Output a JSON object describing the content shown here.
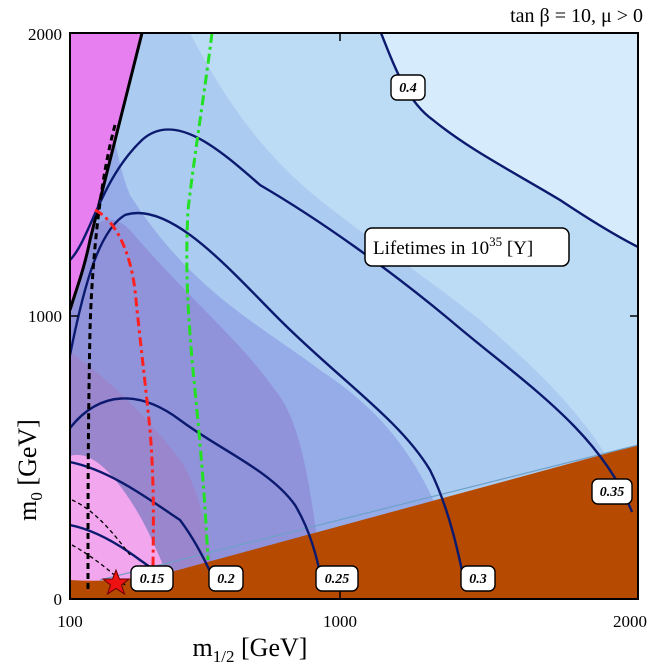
{
  "chart_data": {
    "type": "contour",
    "title": "tan β = 10,  μ > 0",
    "xlabel": "m",
    "xlabel_sub": "1/2",
    "xlabel_unit": " [GeV]",
    "ylabel": "m",
    "ylabel_sub": "0",
    "ylabel_unit": " [GeV]",
    "xlim": [
      100,
      2000
    ],
    "ylim": [
      0,
      2000
    ],
    "x_ticks": [
      "100",
      "1000",
      "2000"
    ],
    "y_ticks": [
      "0",
      "1000",
      "2000"
    ],
    "annotation": {
      "text": "Lifetimes in 10",
      "sup": "35",
      "unit": " [Y]"
    },
    "contour_levels": [
      "0.15",
      "0.2",
      "0.25",
      "0.3",
      "0.35",
      "0.4"
    ],
    "benchmark_marker": "star",
    "colors": {
      "excluded_top_left": "#e87ff0",
      "excluded_bottom_right": "#b54a00",
      "contour_lines": "#0b1a6e",
      "dashed_black": "#000000",
      "dashed_red": "#ff2020",
      "dashed_green": "#22e022",
      "star": "#ee1111"
    }
  }
}
